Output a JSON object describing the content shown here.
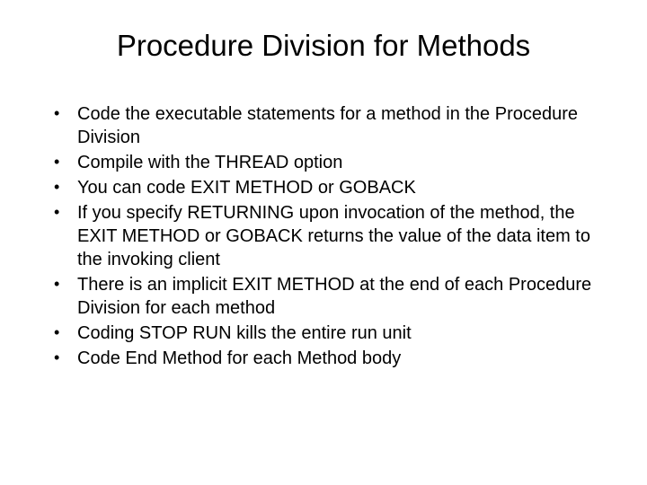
{
  "slide": {
    "title": "Procedure Division for Methods",
    "bullets": [
      "Code the executable statements for a method in the Procedure Division",
      "Compile with the THREAD option",
      "You can code EXIT METHOD or GOBACK",
      "If you specify RETURNING upon invocation of the method, the EXIT METHOD or GOBACK returns the value of the data item to the invoking client",
      "There is an implicit EXIT METHOD at the end of each Procedure Division for each method",
      "Coding STOP RUN kills the entire run unit",
      "Code End Method for each Method body"
    ],
    "background_color": "#ffffff",
    "text_color": "#000000",
    "title_fontsize": 33,
    "body_fontsize": 20,
    "bullet_marker": "•"
  }
}
